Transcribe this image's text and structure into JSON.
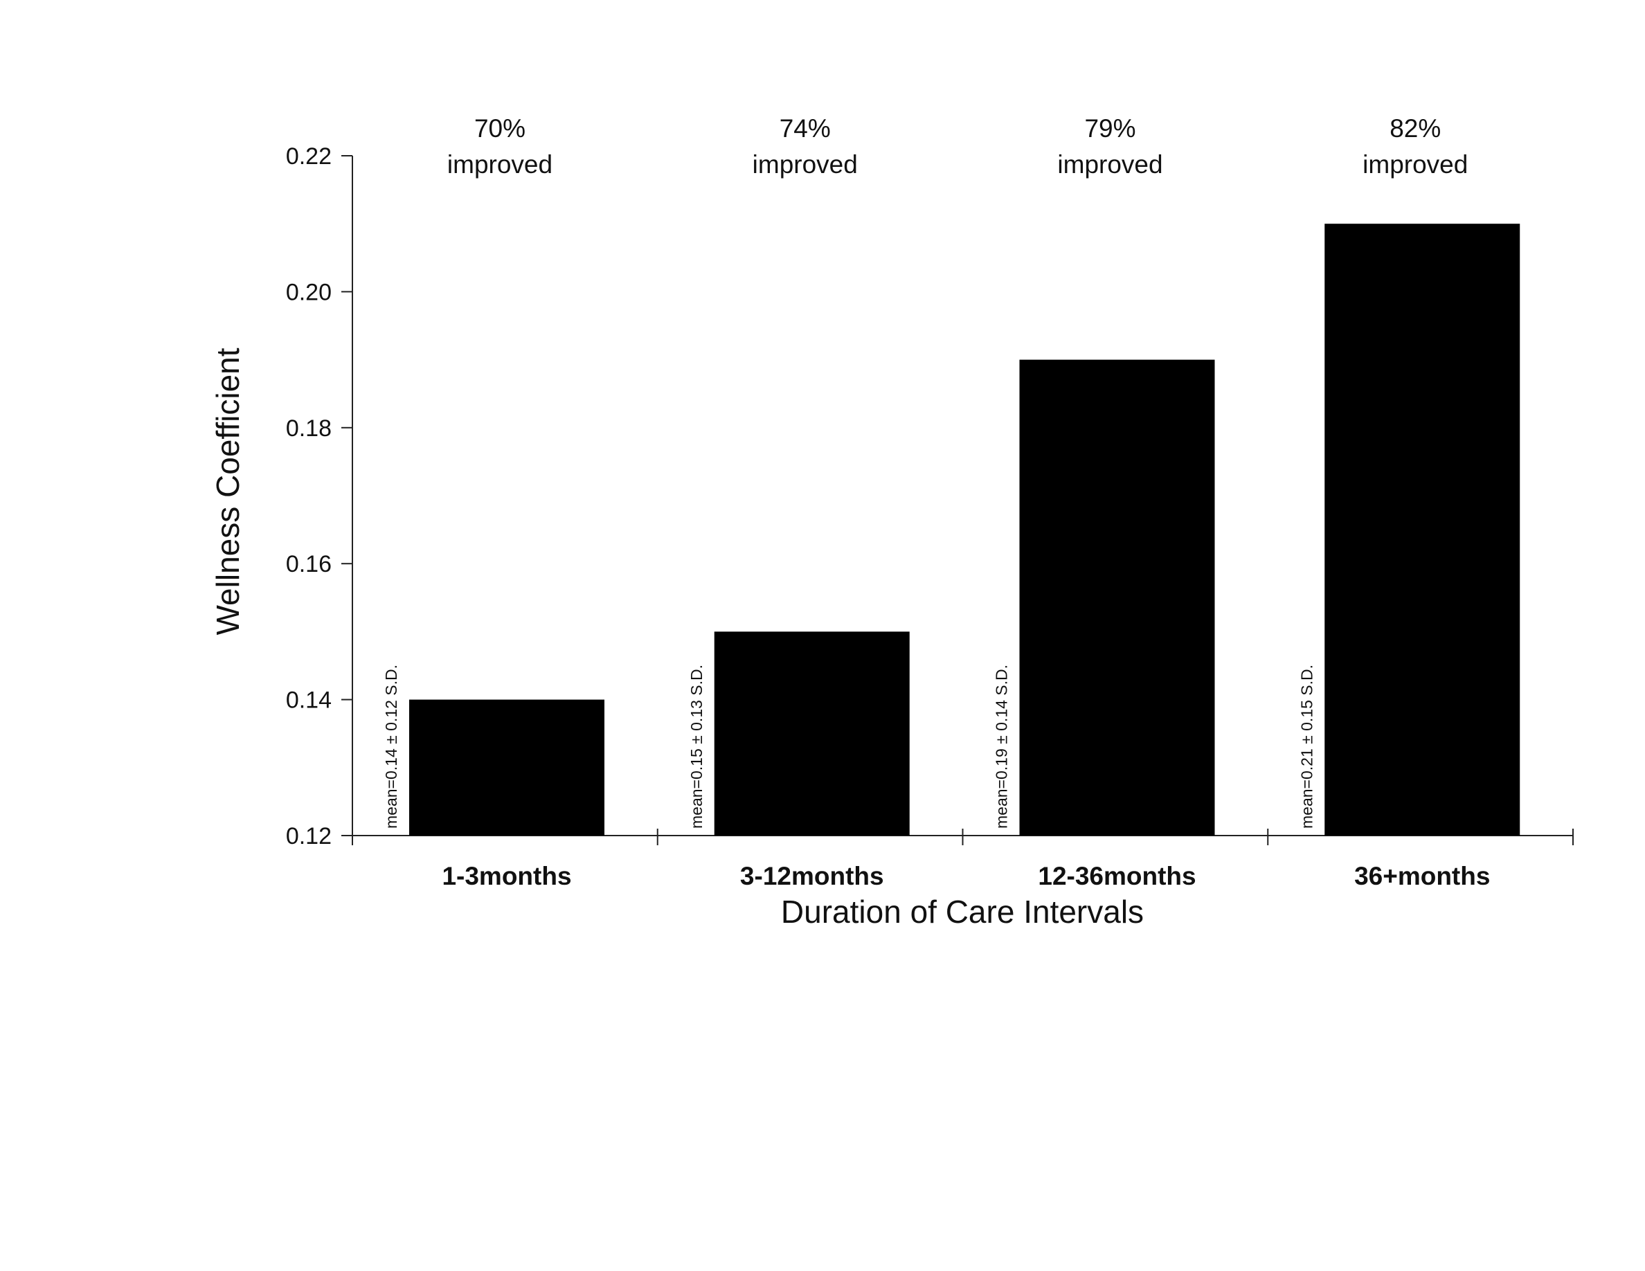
{
  "chart_data": {
    "type": "bar",
    "categories": [
      "1-3months",
      "3-12months",
      "12-36months",
      "36+months"
    ],
    "values": [
      0.14,
      0.15,
      0.19,
      0.21
    ],
    "improved_labels": [
      [
        "70%",
        "improved"
      ],
      [
        "74%",
        "improved"
      ],
      [
        "79%",
        "improved"
      ],
      [
        "82%",
        "improved"
      ]
    ],
    "bar_notes": [
      "mean=0.14 ± 0.12 S.D.",
      "mean=0.15 ± 0.13 S.D.",
      "mean=0.19 ± 0.14 S.D.",
      "mean=0.21 ± 0.15 S.D."
    ],
    "title": "",
    "xlabel": "Duration of Care Intervals",
    "ylabel": "Wellness Coefficient",
    "ylim": [
      0.12,
      0.22
    ],
    "yticks": [
      "0.12",
      "0.14",
      "0.16",
      "0.18",
      "0.20",
      "0.22"
    ],
    "grid": false,
    "bar_color": "#000000"
  }
}
